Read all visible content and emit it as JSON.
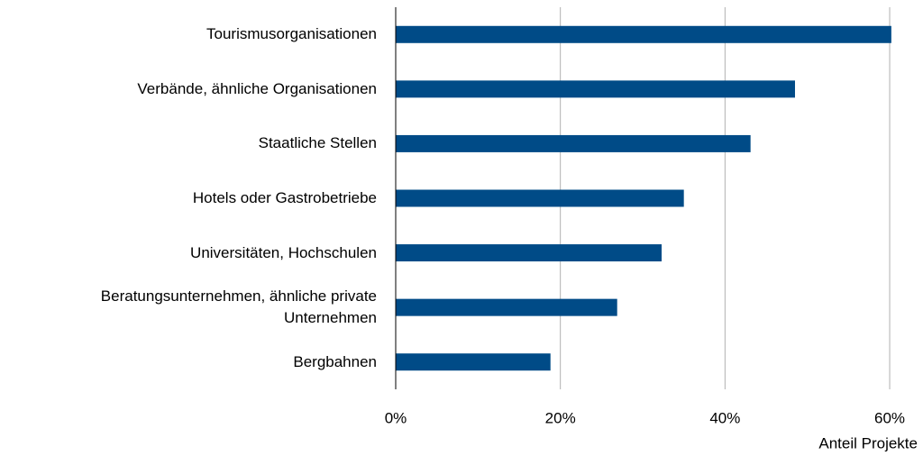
{
  "chart_data": {
    "type": "barh",
    "categories": [
      "Tourismusorganisationen",
      "Verbände, ähnliche Organisationen",
      "Staatliche Stellen",
      "Hotels oder Gastrobetriebe",
      "Universitäten, Hochschulen",
      "Beratungsunternehmen,  ähnliche private Unternehmen",
      "Bergbahnen"
    ],
    "values": [
      60.2,
      48.5,
      43.1,
      35.0,
      32.3,
      26.9,
      18.8
    ],
    "color": "#004b87",
    "xlabel": "Anteil Projekte",
    "xlim": [
      0,
      62
    ],
    "xticks": [
      {
        "value": 0,
        "label": "0%"
      },
      {
        "value": 20,
        "label": "20%"
      },
      {
        "value": 40,
        "label": "40%"
      },
      {
        "value": 60,
        "label": "60%"
      }
    ],
    "grid": true
  }
}
